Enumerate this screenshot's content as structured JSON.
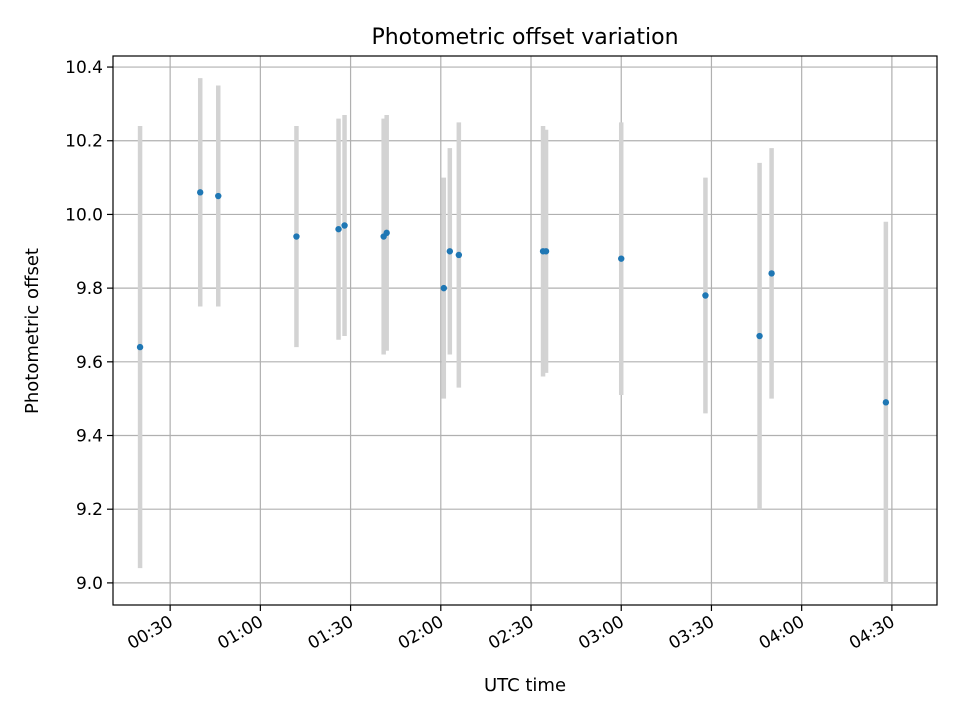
{
  "chart_data": {
    "type": "scatter",
    "title": "Photometric offset variation",
    "xlabel": "UTC time",
    "ylabel": "Photometric offset",
    "x_axis": {
      "range": [
        "00:11",
        "04:45"
      ],
      "ticks": [
        "00:30",
        "01:00",
        "01:30",
        "02:00",
        "02:30",
        "03:00",
        "03:30",
        "04:00",
        "04:30"
      ]
    },
    "y_axis": {
      "range": [
        8.94,
        10.43
      ],
      "ticks": [
        "9.0",
        "9.2",
        "9.4",
        "9.6",
        "9.8",
        "10.0",
        "10.2",
        "10.4"
      ]
    },
    "grid": true,
    "colors": {
      "point": "#1f77b4",
      "errorbar": "#d3d3d3",
      "grid": "#b0b0b0"
    },
    "points": [
      {
        "x": "00:20",
        "y": 9.64,
        "err": 0.6
      },
      {
        "x": "00:40",
        "y": 10.06,
        "err": 0.31
      },
      {
        "x": "00:46",
        "y": 10.05,
        "err": 0.3
      },
      {
        "x": "01:12",
        "y": 9.94,
        "err": 0.3
      },
      {
        "x": "01:26",
        "y": 9.96,
        "err": 0.3
      },
      {
        "x": "01:28",
        "y": 9.97,
        "err": 0.3
      },
      {
        "x": "01:41",
        "y": 9.94,
        "err": 0.32
      },
      {
        "x": "01:42",
        "y": 9.95,
        "err": 0.32
      },
      {
        "x": "02:01",
        "y": 9.8,
        "err": 0.3
      },
      {
        "x": "02:03",
        "y": 9.9,
        "err": 0.28
      },
      {
        "x": "02:06",
        "y": 9.89,
        "err": 0.36
      },
      {
        "x": "02:34",
        "y": 9.9,
        "err": 0.34
      },
      {
        "x": "02:35",
        "y": 9.9,
        "err": 0.33
      },
      {
        "x": "03:00",
        "y": 9.88,
        "err": 0.37
      },
      {
        "x": "03:28",
        "y": 9.78,
        "err": 0.32
      },
      {
        "x": "03:46",
        "y": 9.67,
        "err": 0.47
      },
      {
        "x": "03:50",
        "y": 9.84,
        "err": 0.34
      },
      {
        "x": "04:28",
        "y": 9.49,
        "err": 0.49
      }
    ]
  }
}
